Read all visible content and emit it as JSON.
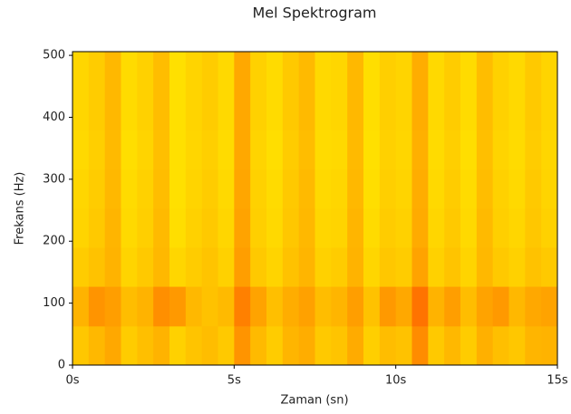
{
  "chart_data": {
    "type": "heatmap",
    "title": "Mel Spektrogram",
    "x_label": "Zaman (sn)",
    "y_label": "Frekans (Hz)",
    "xlim": [
      0,
      15
    ],
    "ylim": [
      0,
      506
    ],
    "xticks": [
      {
        "value": 0,
        "label": "0s"
      },
      {
        "value": 5,
        "label": "5s"
      },
      {
        "value": 10,
        "label": "10s"
      },
      {
        "value": 15,
        "label": "15s"
      }
    ],
    "yticks": [
      0,
      100,
      200,
      300,
      400,
      500
    ],
    "colormap": "autumn",
    "clim": [
      0,
      1
    ],
    "time_bins": [
      0,
      0.5,
      1,
      1.5,
      2,
      2.5,
      3,
      3.5,
      4,
      4.5,
      5,
      5.5,
      6,
      6.5,
      7,
      7.5,
      8,
      8.5,
      9,
      9.5,
      10,
      10.5,
      11,
      11.5,
      12,
      12.5,
      13,
      13.5,
      14,
      14.5,
      15
    ],
    "freq_bins": [
      0,
      63,
      127,
      190,
      253,
      316,
      380,
      443,
      506
    ],
    "values": [
      [
        0.78,
        0.72,
        0.66,
        0.8,
        0.75,
        0.7,
        0.82,
        0.77,
        0.74,
        0.79,
        0.58,
        0.73,
        0.8,
        0.71,
        0.68,
        0.79,
        0.77,
        0.67,
        0.81,
        0.74,
        0.76,
        0.55,
        0.79,
        0.72,
        0.8,
        0.69,
        0.75,
        0.78,
        0.71,
        0.7
      ],
      [
        0.7,
        0.58,
        0.62,
        0.74,
        0.7,
        0.56,
        0.6,
        0.72,
        0.76,
        0.73,
        0.5,
        0.64,
        0.75,
        0.68,
        0.63,
        0.74,
        0.71,
        0.62,
        0.76,
        0.6,
        0.66,
        0.45,
        0.7,
        0.62,
        0.74,
        0.64,
        0.6,
        0.72,
        0.66,
        0.64
      ],
      [
        0.8,
        0.76,
        0.7,
        0.83,
        0.79,
        0.72,
        0.84,
        0.8,
        0.77,
        0.82,
        0.62,
        0.79,
        0.83,
        0.76,
        0.71,
        0.82,
        0.8,
        0.7,
        0.84,
        0.78,
        0.8,
        0.64,
        0.82,
        0.77,
        0.83,
        0.72,
        0.79,
        0.82,
        0.76,
        0.79
      ],
      [
        0.83,
        0.79,
        0.71,
        0.85,
        0.81,
        0.73,
        0.87,
        0.82,
        0.79,
        0.84,
        0.64,
        0.81,
        0.85,
        0.78,
        0.72,
        0.84,
        0.83,
        0.71,
        0.86,
        0.8,
        0.82,
        0.67,
        0.84,
        0.79,
        0.85,
        0.73,
        0.81,
        0.84,
        0.78,
        0.82
      ],
      [
        0.84,
        0.8,
        0.72,
        0.86,
        0.82,
        0.74,
        0.88,
        0.83,
        0.8,
        0.85,
        0.65,
        0.82,
        0.86,
        0.79,
        0.73,
        0.85,
        0.84,
        0.72,
        0.87,
        0.81,
        0.83,
        0.68,
        0.85,
        0.8,
        0.86,
        0.74,
        0.82,
        0.85,
        0.79,
        0.83
      ],
      [
        0.85,
        0.81,
        0.73,
        0.87,
        0.83,
        0.75,
        0.88,
        0.84,
        0.81,
        0.86,
        0.66,
        0.83,
        0.87,
        0.8,
        0.74,
        0.86,
        0.85,
        0.73,
        0.88,
        0.82,
        0.84,
        0.69,
        0.86,
        0.81,
        0.87,
        0.75,
        0.83,
        0.86,
        0.8,
        0.84
      ],
      [
        0.84,
        0.8,
        0.72,
        0.86,
        0.82,
        0.74,
        0.88,
        0.83,
        0.8,
        0.85,
        0.66,
        0.82,
        0.86,
        0.79,
        0.73,
        0.85,
        0.84,
        0.72,
        0.87,
        0.81,
        0.83,
        0.68,
        0.85,
        0.8,
        0.86,
        0.74,
        0.82,
        0.85,
        0.79,
        0.83
      ],
      [
        0.84,
        0.8,
        0.72,
        0.86,
        0.82,
        0.74,
        0.88,
        0.83,
        0.8,
        0.85,
        0.66,
        0.82,
        0.86,
        0.79,
        0.73,
        0.85,
        0.84,
        0.72,
        0.87,
        0.81,
        0.83,
        0.68,
        0.85,
        0.8,
        0.86,
        0.74,
        0.82,
        0.85,
        0.79,
        0.83
      ]
    ]
  }
}
